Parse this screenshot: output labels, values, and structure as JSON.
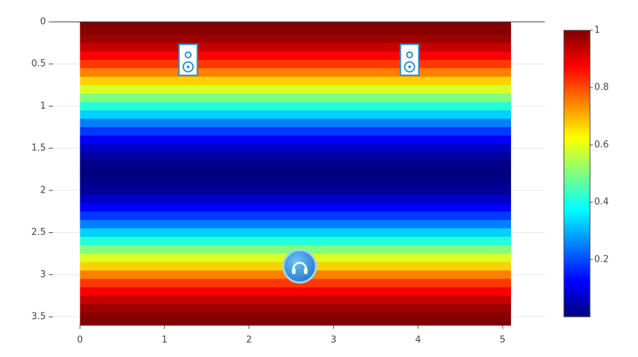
{
  "chart_data": {
    "type": "heatmap",
    "x": [
      0,
      5.1
    ],
    "y": [
      0,
      0.1,
      0.2,
      0.3,
      0.4,
      0.5,
      0.6,
      0.7,
      0.8,
      0.9,
      1,
      1.1,
      1.2,
      1.3,
      1.4,
      1.5,
      1.6,
      1.7,
      1.8,
      1.9,
      2,
      2.1,
      2.2,
      2.3,
      2.4,
      2.5,
      2.6,
      2.7,
      2.8,
      2.9,
      3,
      3.1,
      3.2,
      3.3,
      3.4,
      3.5,
      3.6
    ],
    "z": [
      1,
      0.99,
      0.97,
      0.93,
      0.88,
      0.82,
      0.75,
      0.67,
      0.59,
      0.5,
      0.41,
      0.33,
      0.25,
      0.18,
      0.12,
      0.07,
      0.03,
      0.01,
      0,
      0.01,
      0.03,
      0.07,
      0.12,
      0.18,
      0.25,
      0.33,
      0.41,
      0.5,
      0.59,
      0.67,
      0.75,
      0.82,
      0.88,
      0.93,
      0.97,
      0.99,
      1
    ],
    "colorscale": [
      [
        0,
        "#00007f"
      ],
      [
        0.125,
        "#0000ff"
      ],
      [
        0.375,
        "#00ffff"
      ],
      [
        0.625,
        "#ffff00"
      ],
      [
        0.875,
        "#ff0000"
      ],
      [
        1,
        "#7f0000"
      ]
    ],
    "zlim": [
      0,
      1
    ],
    "colorbar_ticks": [
      0.2,
      0.4,
      0.6,
      0.8,
      1
    ],
    "xlim": [
      -0.32,
      5.5
    ],
    "xticks": [
      0,
      1,
      2,
      3,
      4,
      5
    ],
    "ylim": [
      0,
      3.6
    ],
    "yticks": [
      0,
      0.5,
      1,
      1.5,
      2,
      2.5,
      3,
      3.5
    ],
    "y_reversed": true,
    "grid": true,
    "speakers": [
      {
        "x": 1.28,
        "y": 0.45
      },
      {
        "x": 3.9,
        "y": 0.45
      }
    ],
    "listener": {
      "x": 2.6,
      "y": 2.9
    }
  }
}
